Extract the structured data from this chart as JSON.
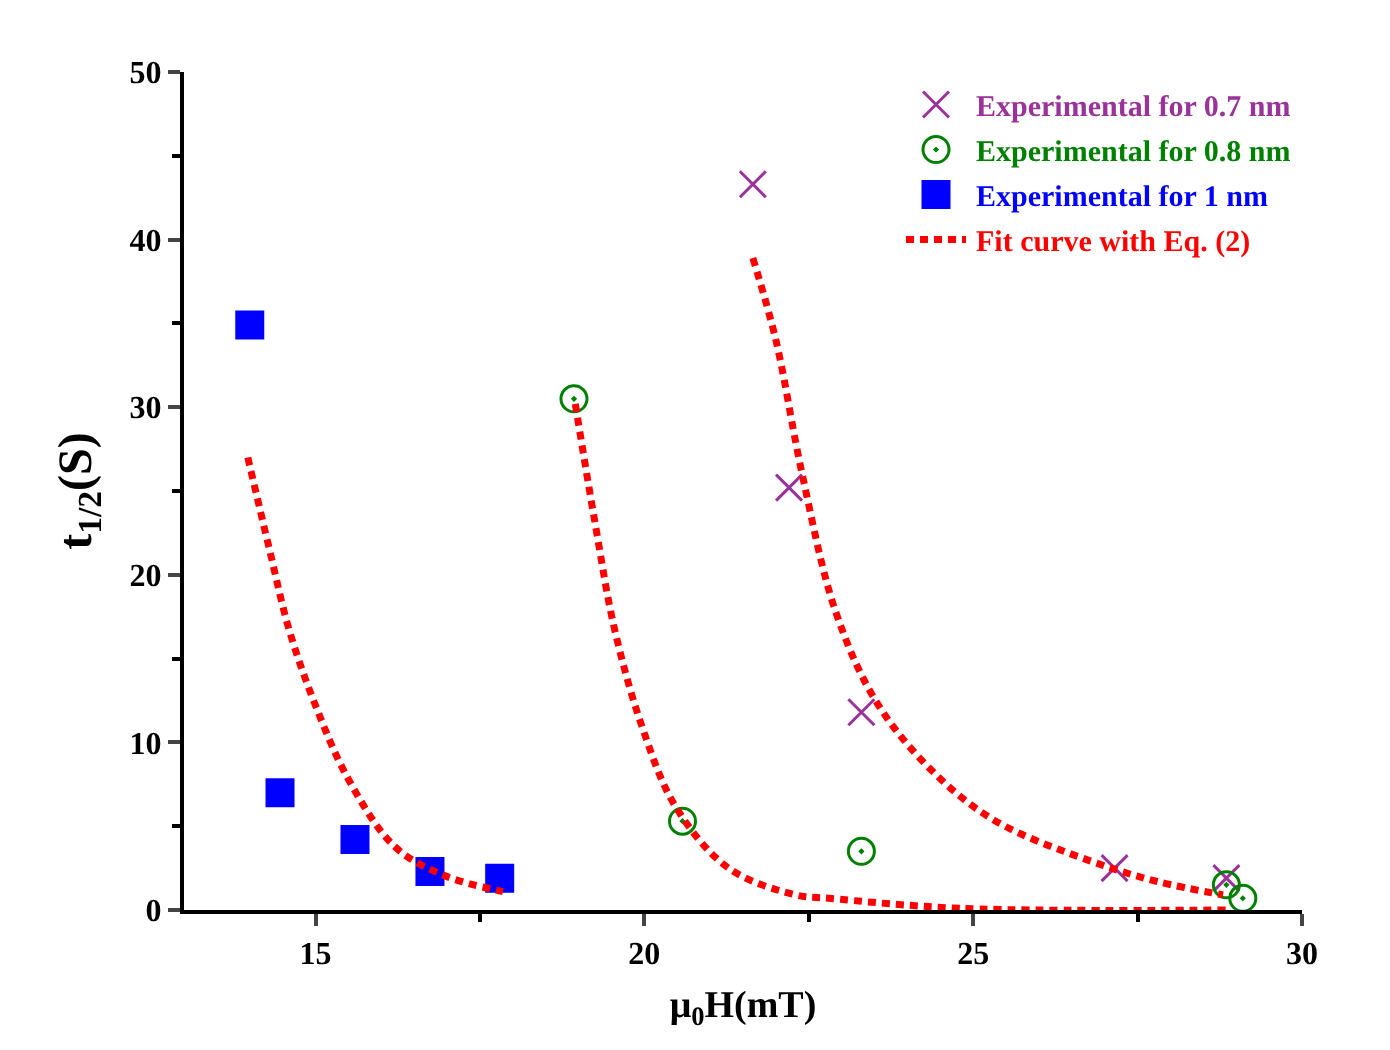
{
  "chart_data": {
    "type": "scatter",
    "xlabel": "μ$_{0}$H(mT)",
    "ylabel": "t$_{1/2}$(S)",
    "xlim": [
      13,
      30
    ],
    "xticks": [
      15,
      20,
      25,
      30
    ],
    "ylim": [
      0,
      50
    ],
    "yticks": [
      0,
      10,
      20,
      30,
      40,
      50
    ],
    "grid": false,
    "legend": "top right",
    "series": [
      {
        "name": "Experimental for 0.7 nm",
        "color": "#993399",
        "marker": "cross",
        "x": [
          21.65,
          22.2,
          23.3,
          27.15,
          28.85
        ],
        "values": [
          43.3,
          25.2,
          11.8,
          2.5,
          1.9
        ]
      },
      {
        "name": "Experimental for 0.8 nm",
        "color": "#008000",
        "marker": "circle",
        "x": [
          18.93,
          20.58,
          23.3,
          28.85,
          29.1
        ],
        "values": [
          30.5,
          5.3,
          3.5,
          1.5,
          0.7
        ]
      },
      {
        "name": "Experimental for 1 nm",
        "color": "#0000ff",
        "marker": "square",
        "x": [
          14.0,
          14.46,
          15.6,
          16.74,
          17.8
        ],
        "values": [
          34.9,
          7.0,
          4.2,
          2.3,
          1.9
        ]
      },
      {
        "name": "Fit curve with Eq. (2)",
        "type": "line",
        "color": "#ff0000",
        "line_style": "dashed",
        "marker": "none",
        "x": [
          13.97,
          14.3,
          14.6,
          15.0,
          15.5,
          16.2,
          16.93,
          17.85
        ],
        "values": [
          27.0,
          21.5,
          16.7,
          12.2,
          7.8,
          3.8,
          2.1,
          1.1
        ]
      },
      {
        "type": "line",
        "color": "#ff0000",
        "line_style": "dashed",
        "marker": "none",
        "x": [
          18.95,
          19.25,
          19.55,
          19.96,
          20.47,
          21.28,
          22.3,
          22.8,
          24.8,
          28.9
        ],
        "values": [
          30.2,
          23.1,
          16.7,
          11.0,
          6.2,
          2.5,
          0.9,
          0.7,
          0.1,
          0
        ]
      },
      {
        "type": "line",
        "color": "#ff0000",
        "line_style": "dashed",
        "marker": "none",
        "x": [
          21.65,
          22.0,
          22.4,
          22.9,
          23.5,
          24.3,
          25.3,
          26.8,
          27.8,
          28.8
        ],
        "values": [
          38.9,
          34.0,
          26.0,
          17.9,
          12.6,
          8.6,
          5.4,
          2.9,
          1.7,
          0.9
        ]
      }
    ]
  }
}
